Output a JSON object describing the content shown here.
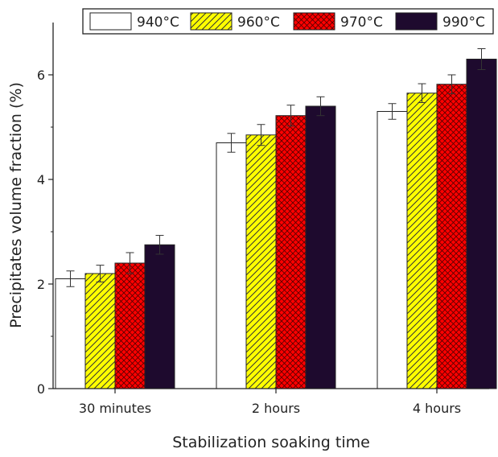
{
  "chart_data": {
    "type": "bar",
    "title": "",
    "xlabel": "Stabilization soaking time",
    "ylabel": "Precipitates volume fraction (%)",
    "categories": [
      "30 minutes",
      "2 hours",
      "4 hours"
    ],
    "ylim": [
      0,
      7
    ],
    "yticks": [
      0,
      2,
      4,
      6
    ],
    "grid": false,
    "legend_placement": "top-right",
    "series": [
      {
        "name": "940°C",
        "values": [
          2.1,
          4.7,
          5.3
        ],
        "errors": [
          0.15,
          0.18,
          0.15
        ],
        "fill": "#ffffff",
        "pattern": "none"
      },
      {
        "name": "960°C",
        "values": [
          2.2,
          4.85,
          5.65
        ],
        "errors": [
          0.16,
          0.2,
          0.18
        ],
        "fill": "#ffff00",
        "pattern": "diagonal"
      },
      {
        "name": "970°C",
        "values": [
          2.4,
          5.22,
          5.82
        ],
        "errors": [
          0.2,
          0.2,
          0.18
        ],
        "fill": "#ff0000",
        "pattern": "crosshatch"
      },
      {
        "name": "990°C",
        "values": [
          2.75,
          5.4,
          6.3
        ],
        "errors": [
          0.18,
          0.18,
          0.2
        ],
        "fill": "#1e0a2e",
        "pattern": "none"
      }
    ]
  }
}
